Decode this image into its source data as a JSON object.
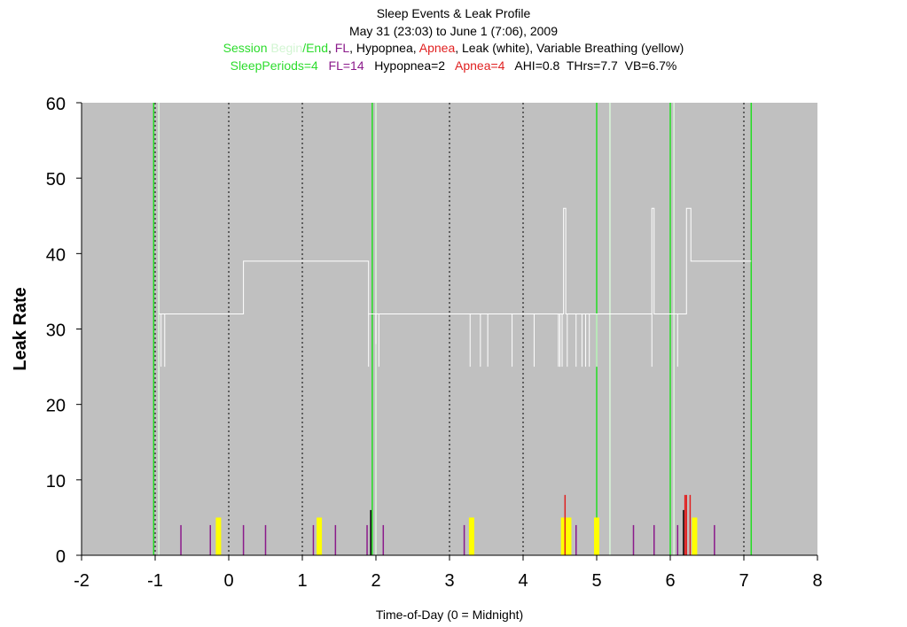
{
  "colors": {
    "plot_bg": "#c0c0c0",
    "session_begin": "#d8f8d8",
    "session_end": "#22dd22",
    "fl": "#8b1a8b",
    "hypopnea": "#000000",
    "apnea": "#e02020",
    "leak": "#ffffff",
    "variable_breathing": "#ffff00"
  },
  "header": {
    "title": "Sleep Events & Leak Profile",
    "subtitle": "May 31 (23:03) to June 1 (7:06), 2009",
    "legend": {
      "session": "Session ",
      "begin": "Begin",
      "end": "/End",
      "sep1": ", ",
      "fl": "FL",
      "sep2": ", Hypopnea, ",
      "apnea": "Apnea",
      "rest": ", Leak (white), Variable Breathing (yellow)"
    },
    "stats": {
      "sleep_periods": "SleepPeriods=4",
      "fl": "FL=14",
      "hypopnea": "Hypopnea=2",
      "apnea": "Apnea=4",
      "rest": "AHI=0.8  THrs=7.7  VB=6.7%"
    }
  },
  "chart_data": {
    "type": "line",
    "xlabel": "Time-of-Day (0 = Midnight)",
    "ylabel": "Leak Rate",
    "xlim": [
      -2,
      8
    ],
    "ylim": [
      0,
      60
    ],
    "xticks": [
      "-2",
      "-1",
      "0",
      "1",
      "2",
      "3",
      "4",
      "5",
      "6",
      "7",
      "8"
    ],
    "yticks": [
      "0",
      "10",
      "20",
      "30",
      "40",
      "50",
      "60"
    ],
    "hourly_gridlines": [
      -1,
      0,
      1,
      2,
      3,
      4,
      5,
      6,
      7
    ],
    "session_begin_times": [
      -0.95,
      2.0,
      5.18,
      6.05
    ],
    "session_end_times": [
      -1.02,
      1.95,
      5.0,
      6.0,
      7.1
    ],
    "leak": {
      "x": [
        -0.95,
        -0.9,
        -0.9,
        0.2,
        0.2,
        1.9,
        1.9,
        2.0,
        2.05,
        4.55,
        4.55,
        4.58,
        4.58,
        5.75,
        5.75,
        5.78,
        5.78,
        6.22,
        6.22,
        6.28,
        6.28,
        7.1
      ],
      "y": [
        32,
        32,
        32,
        32,
        39,
        39,
        32,
        32,
        32,
        32,
        46,
        46,
        32,
        32,
        46,
        46,
        32,
        32,
        46,
        46,
        39,
        39
      ]
    },
    "leak_dropouts": {
      "x": [
        -0.92,
        -0.87,
        1.9,
        2.0,
        2.04,
        3.28,
        3.42,
        3.52,
        3.85,
        4.15,
        4.48,
        4.5,
        4.53,
        4.6,
        4.72,
        4.8,
        4.85,
        4.9,
        5.0,
        5.75,
        6.1
      ],
      "y": [
        25,
        25,
        25,
        28,
        25,
        25,
        25,
        25,
        25,
        25,
        25,
        25,
        25,
        25,
        25,
        25,
        25,
        25,
        25,
        25,
        25
      ]
    },
    "flow_limitation": [
      -0.65,
      -0.25,
      0.2,
      0.5,
      1.15,
      1.45,
      1.88,
      2.1,
      3.2,
      4.72,
      5.5,
      5.78,
      6.1,
      6.6
    ],
    "flow_limitation_height": 4,
    "hypopnea": [
      1.93,
      6.18
    ],
    "hypopnea_height": 6,
    "apnea": [
      4.57,
      6.2,
      6.22,
      6.27
    ],
    "apnea_height": 8,
    "variable_breathing": {
      "x": [
        -0.14,
        1.23,
        3.3,
        4.55,
        4.62,
        5.0,
        6.33
      ],
      "y": [
        5,
        5,
        5,
        5,
        5,
        5,
        5
      ]
    }
  }
}
